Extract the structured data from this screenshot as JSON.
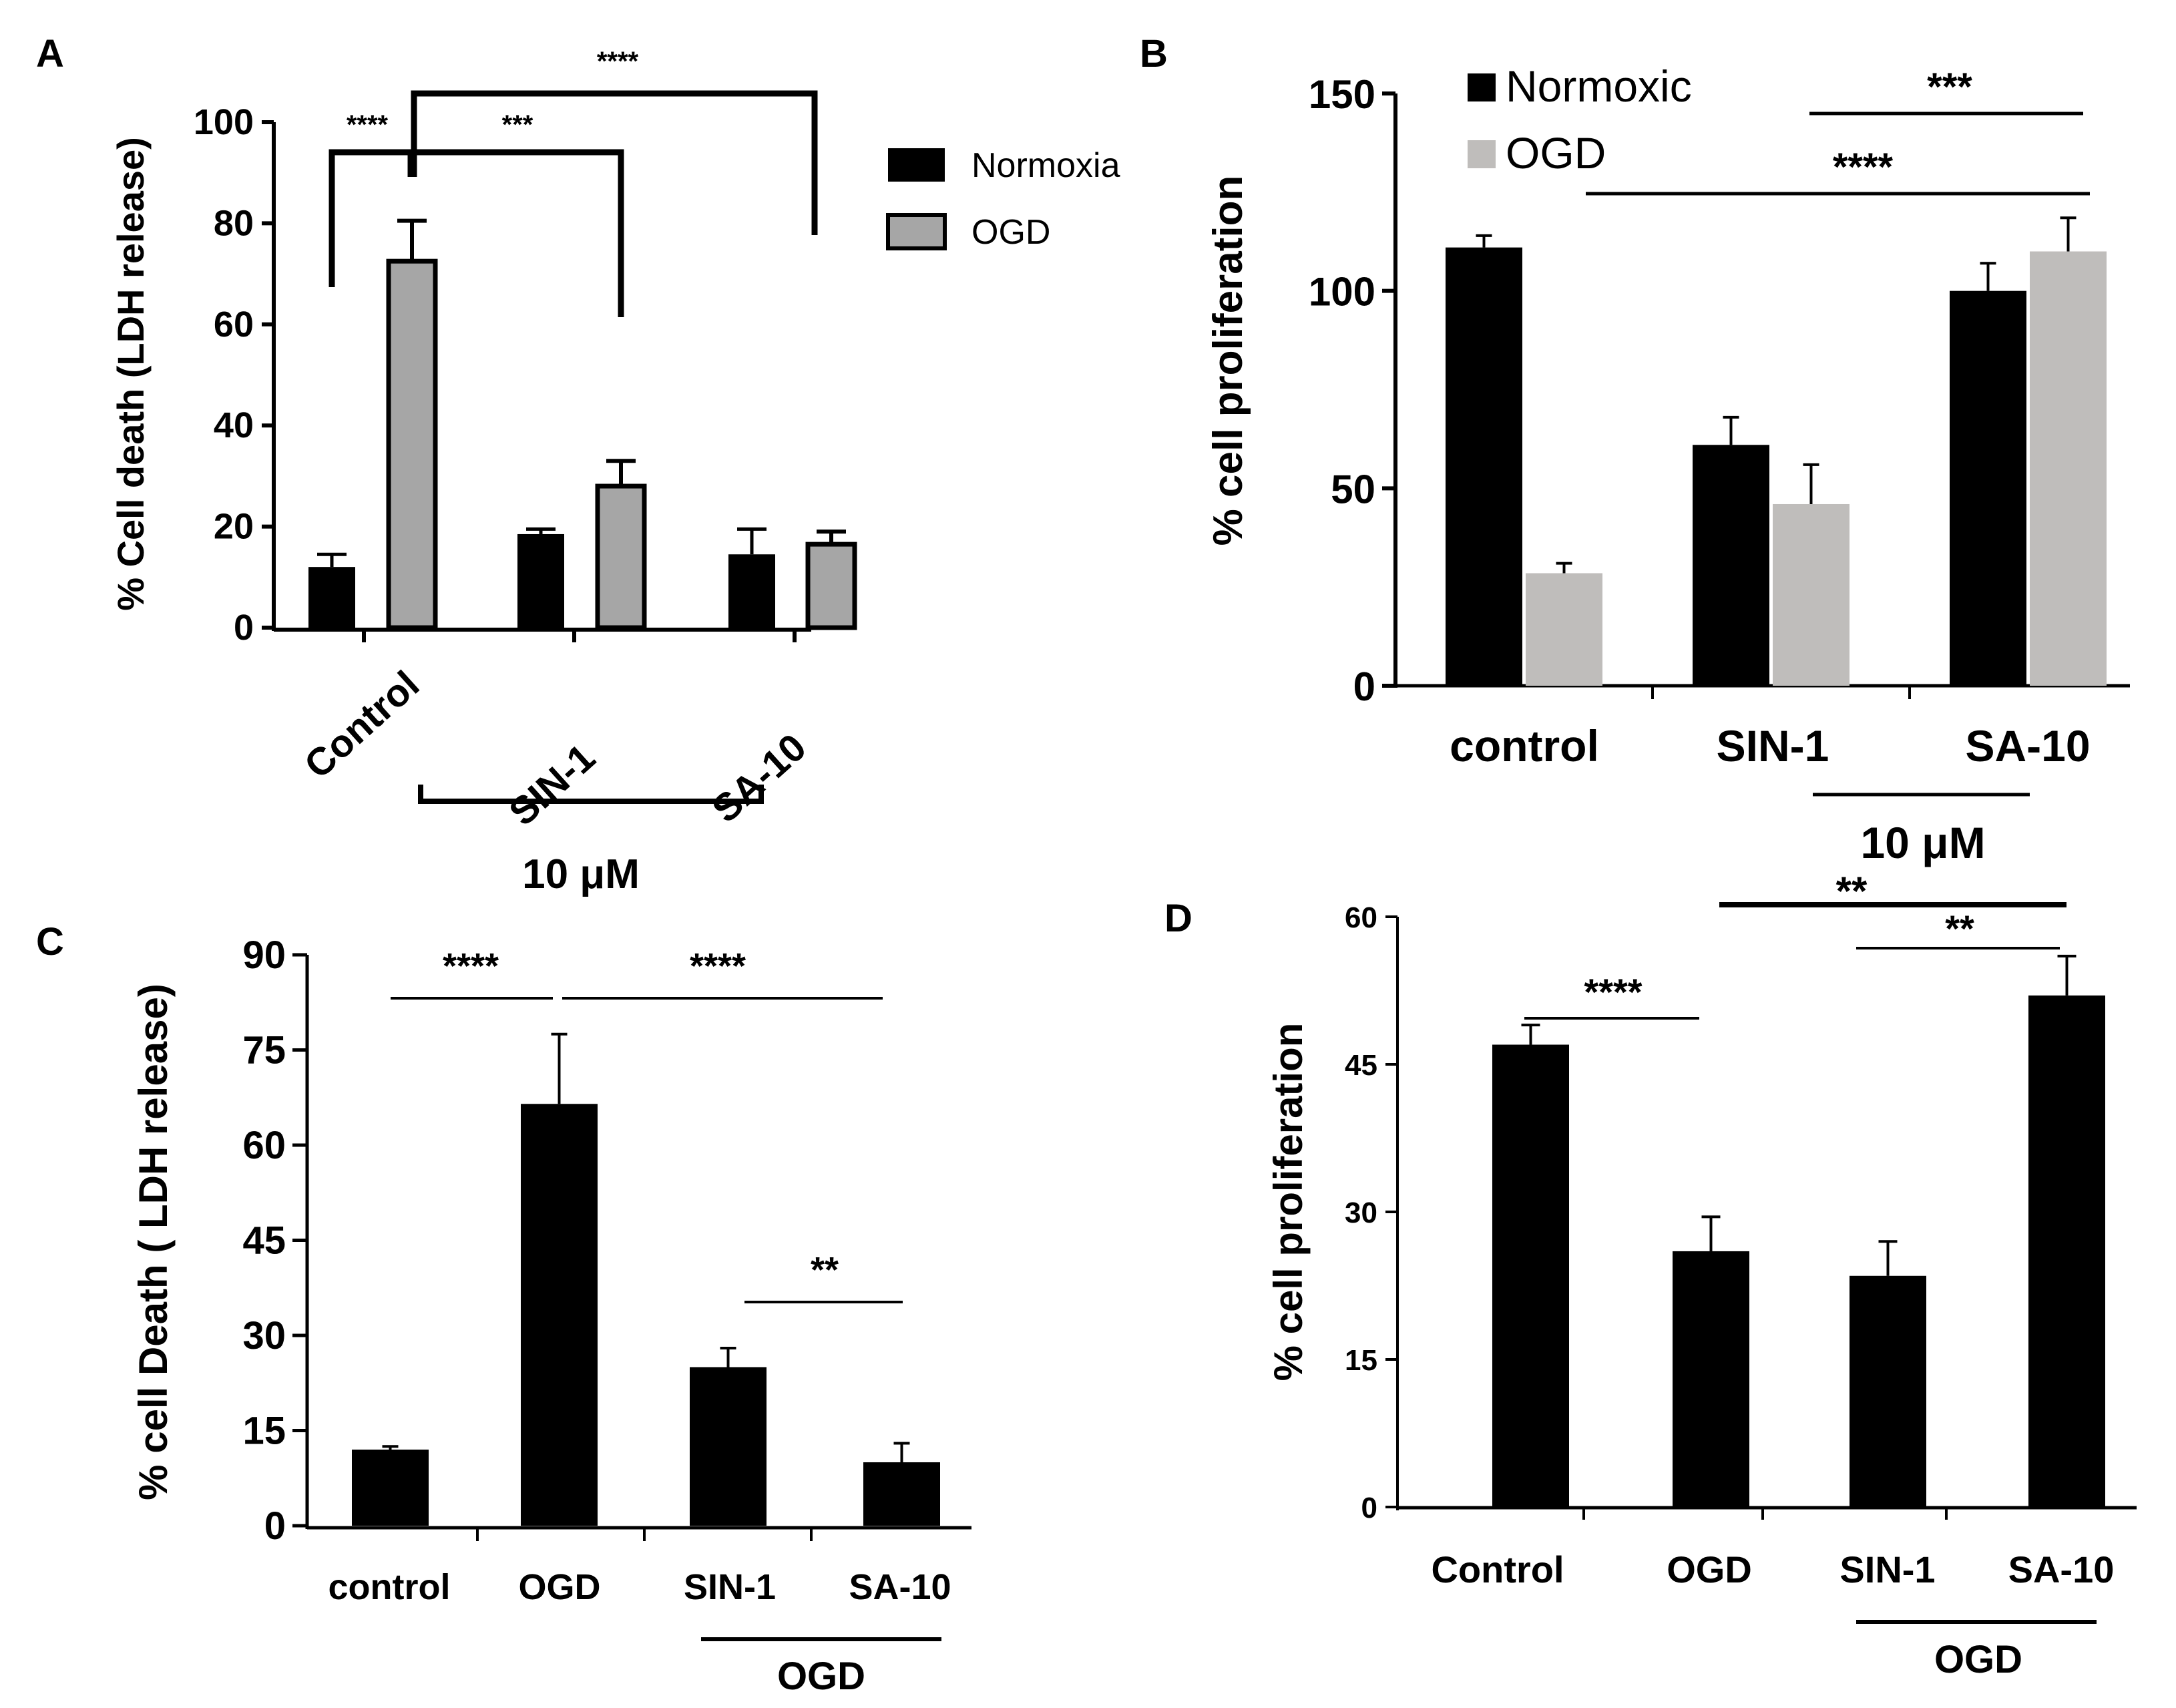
{
  "colors": {
    "black": "#000000",
    "gray_a": "#a6a6a6",
    "gray_b": "#bfbdbb",
    "bar_c": "#000000",
    "bar_d": "#000000"
  },
  "chart_data": [
    {
      "id": "A",
      "panel_label": "A",
      "type": "bar",
      "ylabel": "% Cell death (LDH release)",
      "ylim": [
        0,
        100
      ],
      "yticks": [
        "0",
        "20",
        "40",
        "60",
        "80",
        "100"
      ],
      "categories": [
        "Control",
        "SIN-1",
        "SA-10"
      ],
      "series": [
        {
          "name": "Normoxia",
          "values": [
            12,
            18.5,
            14.5
          ],
          "errors": [
            2.5,
            1,
            5
          ]
        },
        {
          "name": "OGD",
          "values": [
            72.5,
            28,
            16.5
          ],
          "errors": [
            8,
            5,
            2.5
          ]
        }
      ],
      "legend": [
        "Normoxia",
        "OGD"
      ],
      "group_bracket": "10 μM",
      "significance": [
        "****",
        "***",
        "****"
      ]
    },
    {
      "id": "B",
      "panel_label": "B",
      "type": "bar",
      "ylabel": "% cell proliferation",
      "ylim": [
        0,
        150
      ],
      "yticks": [
        "0",
        "50",
        "100",
        "150"
      ],
      "categories": [
        "control",
        "SIN-1",
        "SA-10"
      ],
      "series": [
        {
          "name": "Normoxic",
          "values": [
            111,
            61,
            100
          ],
          "errors": [
            3,
            7,
            7
          ]
        },
        {
          "name": "OGD",
          "values": [
            28.5,
            46,
            110
          ],
          "errors": [
            2.5,
            10,
            8.5
          ]
        }
      ],
      "legend": [
        "Normoxic",
        "OGD"
      ],
      "group_bracket": "10 μM",
      "significance": [
        "***",
        "****"
      ]
    },
    {
      "id": "C",
      "panel_label": "C",
      "type": "bar",
      "ylabel": "% cell Death ( LDH release)",
      "ylim": [
        0,
        90
      ],
      "yticks": [
        "0",
        "15",
        "30",
        "45",
        "60",
        "75",
        "90"
      ],
      "categories": [
        "control",
        "OGD",
        "SIN-1",
        "SA-10"
      ],
      "values": [
        12,
        66.5,
        25,
        10
      ],
      "errors": [
        0.5,
        11,
        3,
        3
      ],
      "group_bracket": "OGD",
      "significance": [
        "****",
        "****",
        "**"
      ]
    },
    {
      "id": "D",
      "panel_label": "D",
      "type": "bar",
      "ylabel": "% cell proliferation",
      "ylim": [
        0,
        60
      ],
      "yticks": [
        "0",
        "15",
        "30",
        "45",
        "60"
      ],
      "categories": [
        "Control",
        "OGD",
        "SIN-1",
        "SA-10"
      ],
      "values": [
        47,
        26,
        23.5,
        52
      ],
      "errors": [
        2,
        3.5,
        3.5,
        4
      ],
      "group_bracket": "OGD",
      "significance": [
        "****",
        "**",
        "**"
      ]
    }
  ]
}
